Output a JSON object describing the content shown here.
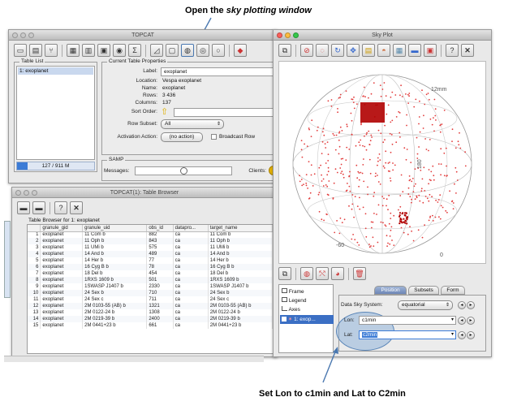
{
  "callouts": {
    "top_prefix": "Open the ",
    "top_emph": "sky plotting window",
    "bottom": "Set Lon to c1min and Lat to C2min"
  },
  "topcat_window": {
    "title": "TOPCAT",
    "table_list": {
      "title": "Table List",
      "items": [
        "1: exoplanet"
      ],
      "memory": "127 / 911 M"
    },
    "properties": {
      "title": "Current Table Properties",
      "label_label": "Label:",
      "label_value": "exoplanet",
      "location_label": "Location:",
      "location_value": "Vespa exoplanet",
      "name_label": "Name:",
      "name_value": "exoplanet",
      "rows_label": "Rows:",
      "rows_value": "3 436",
      "columns_label": "Columns:",
      "columns_value": "137",
      "sort_label": "Sort Order:",
      "subset_label": "Row Subset:",
      "subset_value": "All",
      "activation_label": "Activation Action:",
      "activation_value": "(no action)",
      "broadcast_label": "Broadcast Row"
    },
    "samp": {
      "title": "SAMP",
      "messages_label": "Messages:",
      "clients_label": "Clients:"
    }
  },
  "browser_window": {
    "title": "TOPCAT(1): Table Browser",
    "heading": "Table Browser for 1: exoplanet",
    "columns": [
      "",
      "granule_gid",
      "granule_uid",
      "obs_id",
      "datapro...",
      "target_name"
    ],
    "rows": [
      [
        "1",
        "exoplanet",
        "11 Com b",
        "882",
        "ca",
        "11 Com b"
      ],
      [
        "2",
        "exoplanet",
        "11 Oph b",
        "843",
        "ca",
        "11 Oph b"
      ],
      [
        "3",
        "exoplanet",
        "11 UMi b",
        "575",
        "ca",
        "11 UMi b"
      ],
      [
        "4",
        "exoplanet",
        "14 And b",
        "489",
        "ca",
        "14 And b"
      ],
      [
        "5",
        "exoplanet",
        "14 Her b",
        "77",
        "ca",
        "14 Her b"
      ],
      [
        "6",
        "exoplanet",
        "16 Cyg B b",
        "78",
        "ca",
        "16 Cyg B b"
      ],
      [
        "7",
        "exoplanet",
        "18 Del b",
        "454",
        "ca",
        "18 Del b"
      ],
      [
        "8",
        "exoplanet",
        "1RXS 1609 b",
        "501",
        "ca",
        "1RXS 1609 b"
      ],
      [
        "9",
        "exoplanet",
        "1SWASP J1407 b",
        "2330",
        "ca",
        "1SWASP J1407 b"
      ],
      [
        "10",
        "exoplanet",
        "24 Sex b",
        "710",
        "ca",
        "24 Sex b"
      ],
      [
        "11",
        "exoplanet",
        "24 Sex c",
        "711",
        "ca",
        "24 Sex c"
      ],
      [
        "12",
        "exoplanet",
        "2M 0103-55 (AB) b",
        "1321",
        "ca",
        "2M 0103-55 (AB) b"
      ],
      [
        "13",
        "exoplanet",
        "2M 0122-24 b",
        "1308",
        "ca",
        "2M 0122-24 b"
      ],
      [
        "14",
        "exoplanet",
        "2M 0219-39 b",
        "2400",
        "ca",
        "2M 0219-39 b"
      ],
      [
        "15",
        "exoplanet",
        "2M 0441+23 b",
        "661",
        "ca",
        "2M 0441+23 b"
      ]
    ]
  },
  "sky_window": {
    "title": "Sky Plot",
    "grid_labels": [
      "-60",
      "0",
      "60",
      "120",
      "180",
      "12mm"
    ],
    "layers": [
      "Frame",
      "Legend",
      "Axes"
    ],
    "layer_selected": "1: exop...",
    "tabs": [
      "Position",
      "Subsets",
      "Form"
    ],
    "sky_system_label": "Data Sky System:",
    "sky_system_value": "equatorial",
    "lon_label": "Lon:",
    "lon_value": "c1min",
    "lat_label": "Lat:",
    "lat_value": "c2min"
  },
  "colors": {
    "points": "#e23b3b",
    "cluster": "#b00000",
    "highlight": "#7fa8d6",
    "selection": "#3b7bd6"
  }
}
